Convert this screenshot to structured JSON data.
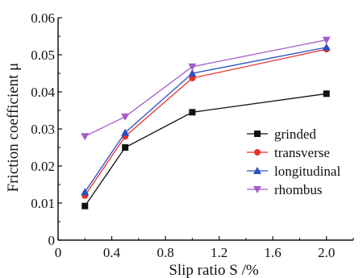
{
  "chart_data": {
    "type": "line",
    "xlabel": "Slip ratio S /%",
    "ylabel": "Friction coefficient μ",
    "xlim": [
      0,
      2.2
    ],
    "ylim": [
      0,
      0.06
    ],
    "xticks": [
      "0",
      "0.4",
      "0.8",
      "1.2",
      "1.6",
      "2.0"
    ],
    "yticks": [
      "0",
      "0.01",
      "0.02",
      "0.03",
      "0.04",
      "0.05",
      "0.06"
    ],
    "x": [
      0.2,
      0.5,
      1.0,
      2.0
    ],
    "grid": false,
    "legend_position": "center-right",
    "series": [
      {
        "name": "grinded",
        "values": [
          0.0092,
          0.025,
          0.0345,
          0.0395
        ],
        "color": "#111111",
        "marker": "square"
      },
      {
        "name": "transverse",
        "values": [
          0.012,
          0.028,
          0.0437,
          0.0515
        ],
        "color": "#e8312a",
        "marker": "circle"
      },
      {
        "name": "longitudinal",
        "values": [
          0.013,
          0.029,
          0.045,
          0.052
        ],
        "color": "#2b4fc2",
        "marker": "triangle-up"
      },
      {
        "name": "rhombus",
        "values": [
          0.028,
          0.0333,
          0.0468,
          0.054
        ],
        "color": "#a45ac8",
        "marker": "triangle-down"
      }
    ]
  }
}
